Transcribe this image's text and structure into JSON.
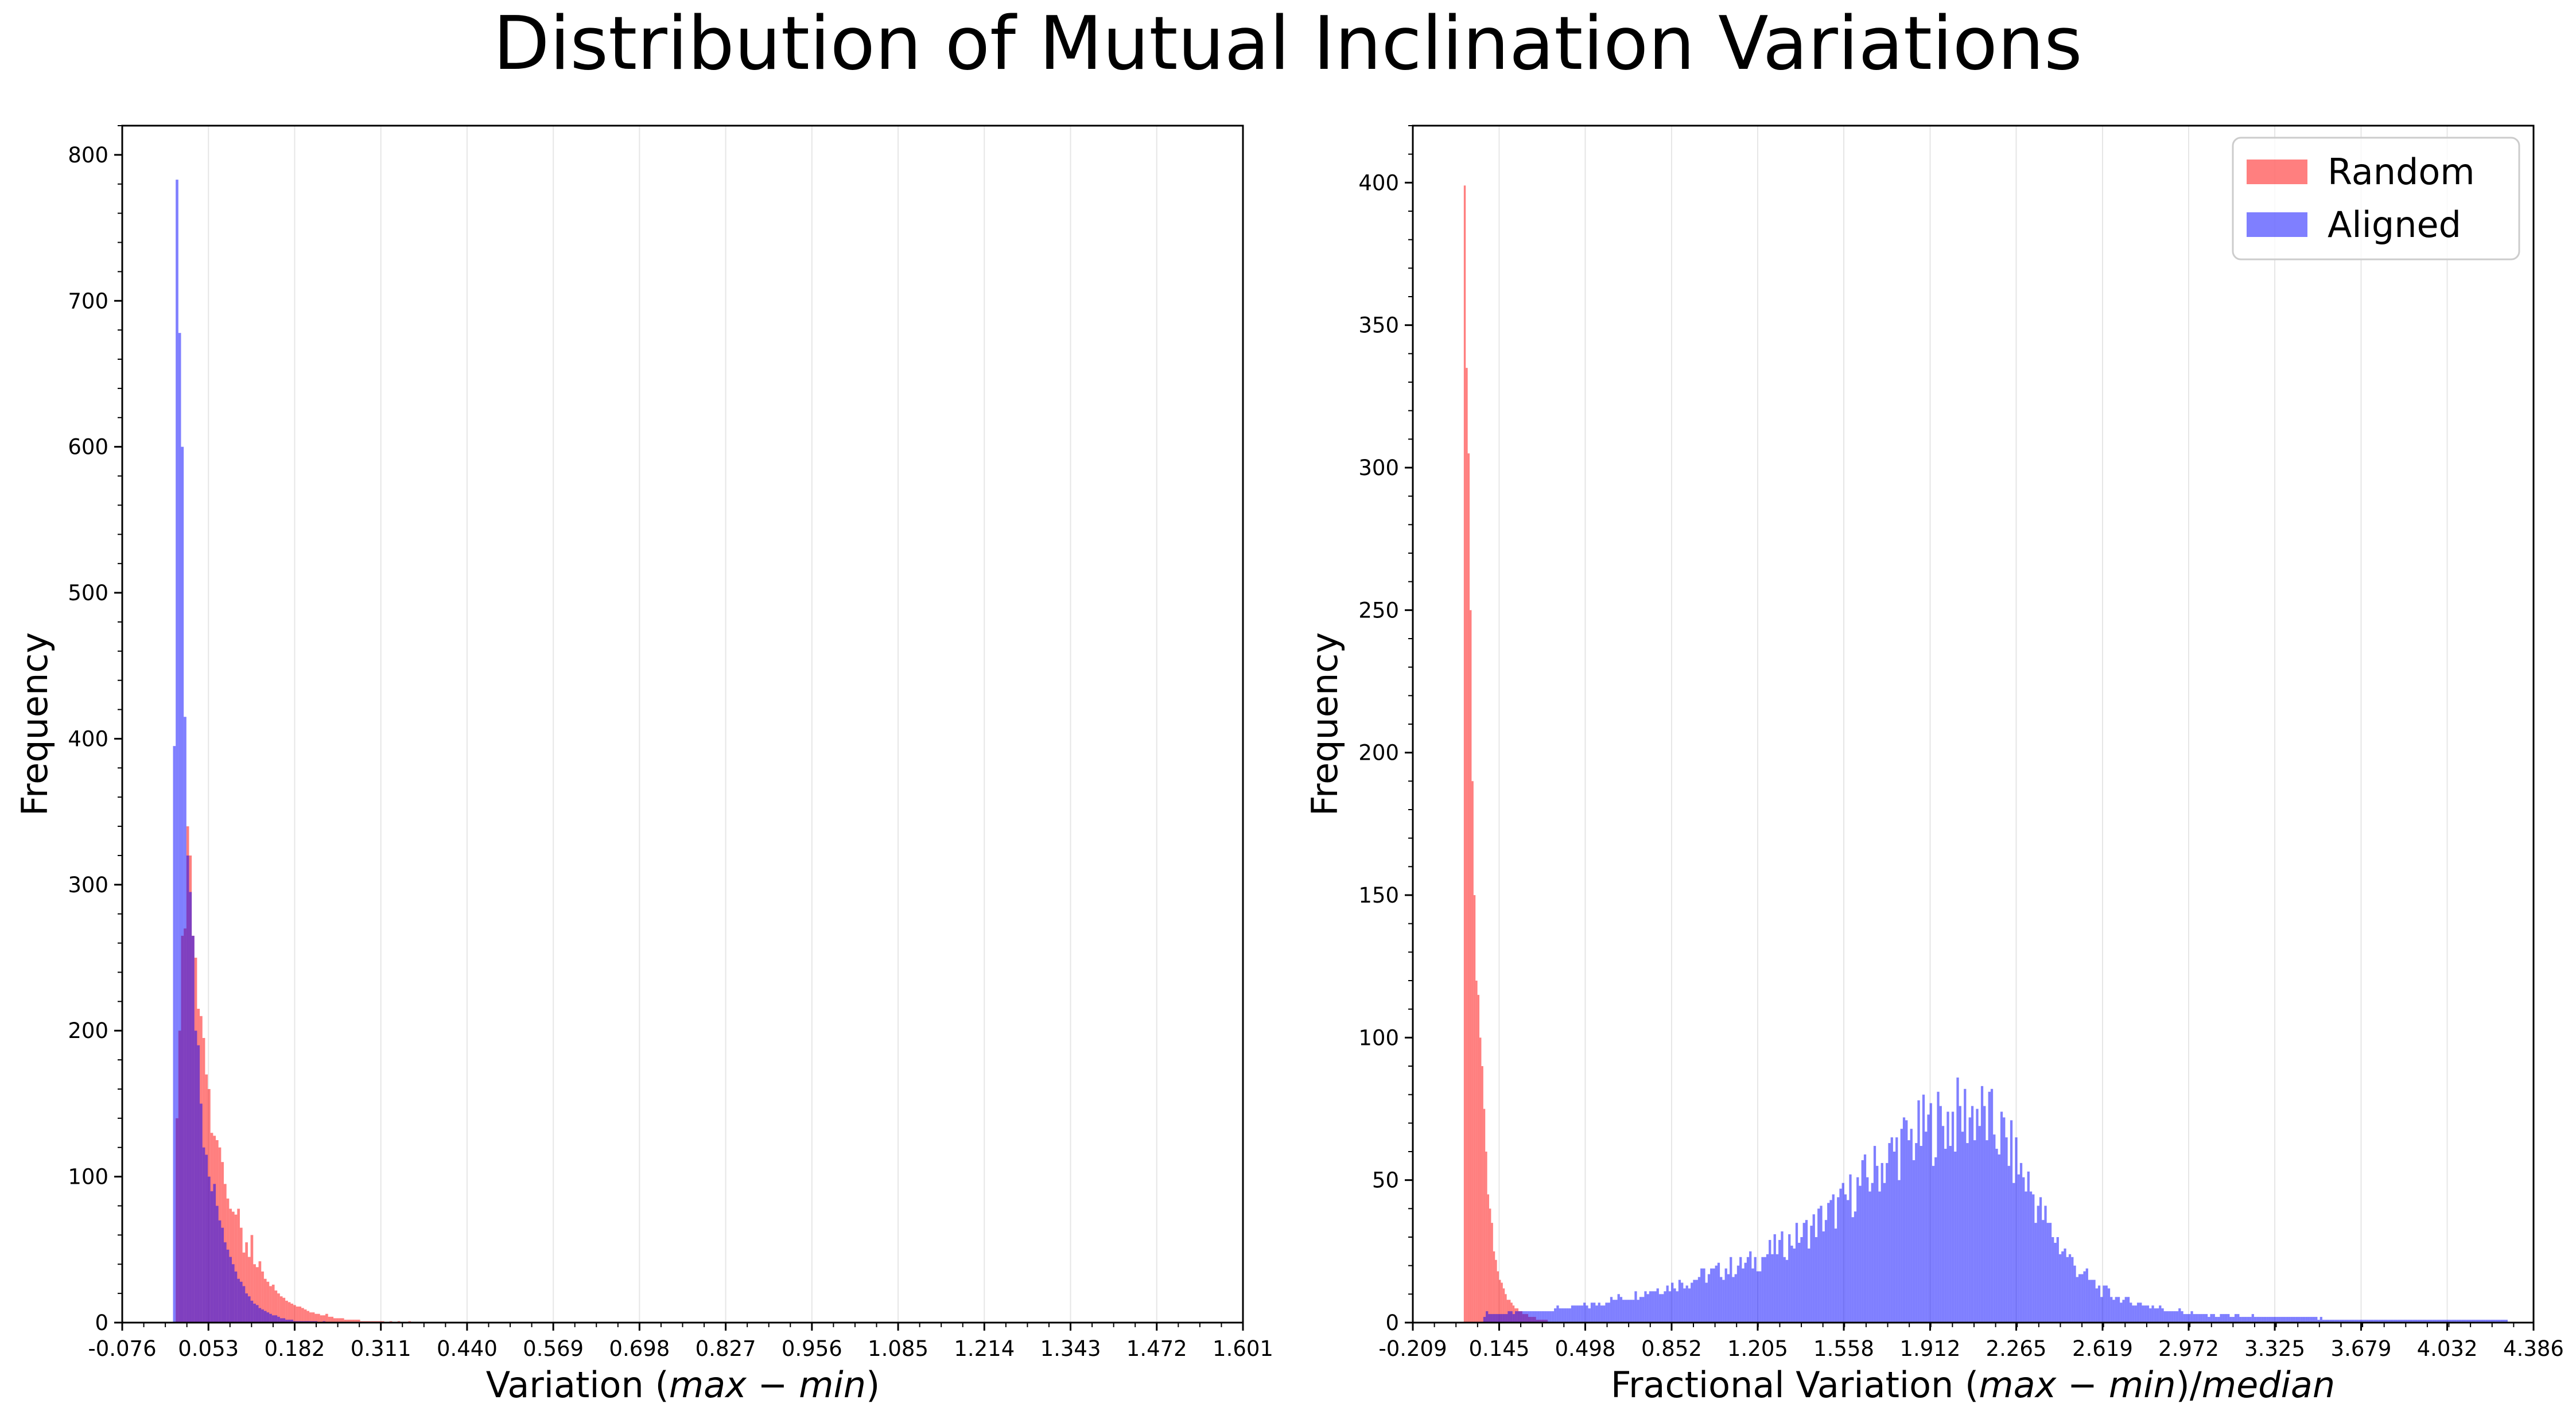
{
  "figure": {
    "title": "Distribution of Mutual Inclination Variations"
  },
  "colors": {
    "random": "#ff0000",
    "aligned": "#0000ff",
    "bar_alpha": 0.5,
    "grid": "#e6e6e6"
  },
  "chart_data": [
    {
      "type": "bar",
      "subtype": "histogram-overlay",
      "xlabel_text": "Variation (",
      "xlabel_math": "max − min",
      "xlabel_tail": ")",
      "ylabel": "Frequency",
      "xlim": [
        -0.076,
        1.601
      ],
      "ylim": [
        0,
        820
      ],
      "grid": "vertical",
      "xticks": [
        "-0.076",
        "0.053",
        "0.182",
        "0.311",
        "0.440",
        "0.569",
        "0.698",
        "0.827",
        "0.956",
        "1.085",
        "1.214",
        "1.343",
        "1.472",
        "1.601"
      ],
      "xtick_values": [
        -0.076,
        0.053,
        0.182,
        0.311,
        0.44,
        0.569,
        0.698,
        0.827,
        0.956,
        1.085,
        1.214,
        1.343,
        1.472,
        1.601
      ],
      "yticks": [
        0,
        100,
        200,
        300,
        400,
        500,
        600,
        700,
        800
      ],
      "series": [
        {
          "key": "random",
          "bin_start": 0.004,
          "bin_width": 0.004,
          "values": [
            140,
            200,
            265,
            270,
            340,
            320,
            265,
            250,
            215,
            210,
            195,
            170,
            160,
            130,
            128,
            125,
            120,
            110,
            95,
            85,
            78,
            76,
            74,
            78,
            65,
            48,
            55,
            45,
            60,
            40,
            38,
            42,
            35,
            30,
            28,
            25,
            26,
            22,
            20,
            18,
            17,
            15,
            14,
            13,
            12,
            11,
            11,
            10,
            9,
            8,
            7,
            7,
            6,
            6,
            5,
            5,
            6,
            4,
            4,
            3,
            3,
            3,
            3,
            2,
            2,
            2,
            2,
            2,
            2,
            1,
            1,
            1,
            1,
            1,
            1,
            1,
            1,
            1,
            0,
            0,
            1,
            0,
            0,
            1,
            0,
            0,
            0,
            1
          ]
        },
        {
          "key": "aligned",
          "bin_start": 0.0,
          "bin_width": 0.004,
          "values": [
            395,
            783,
            678,
            600,
            415,
            320,
            295,
            265,
            200,
            190,
            150,
            120,
            115,
            100,
            90,
            95,
            80,
            70,
            65,
            55,
            50,
            45,
            40,
            35,
            30,
            28,
            25,
            20,
            18,
            15,
            13,
            12,
            10,
            9,
            8,
            7,
            6,
            5,
            5,
            4,
            3,
            3,
            2,
            2,
            2,
            1,
            1,
            1,
            1,
            1,
            1,
            1,
            1,
            1,
            0,
            0,
            1
          ]
        }
      ]
    },
    {
      "type": "bar",
      "subtype": "histogram-overlay",
      "xlabel_text": "Fractional Variation (",
      "xlabel_math": "max − min",
      "xlabel_tail": ")/",
      "xlabel_math2": "median",
      "ylabel": "Frequency",
      "xlim": [
        -0.209,
        4.386
      ],
      "ylim": [
        0,
        420
      ],
      "grid": "vertical",
      "legend": {
        "placement": "top-right",
        "entries": [
          "Random",
          "Aligned"
        ]
      },
      "xticks": [
        "-0.209",
        "0.145",
        "0.498",
        "0.852",
        "1.205",
        "1.558",
        "1.912",
        "2.265",
        "2.619",
        "2.972",
        "3.325",
        "3.679",
        "4.032",
        "4.386"
      ],
      "xtick_values": [
        -0.209,
        0.145,
        0.498,
        0.852,
        1.205,
        1.558,
        1.912,
        2.265,
        2.619,
        2.972,
        3.325,
        3.679,
        4.032,
        4.386
      ],
      "yticks": [
        0,
        50,
        100,
        150,
        200,
        250,
        300,
        350,
        400
      ],
      "series": [
        {
          "key": "random",
          "bin_start": 0.0,
          "bin_width": 0.008,
          "values": [
            399,
            335,
            305,
            250,
            190,
            150,
            120,
            115,
            100,
            90,
            75,
            60,
            45,
            40,
            35,
            25,
            22,
            18,
            15,
            14,
            12,
            10,
            8,
            8,
            7,
            6,
            5,
            5,
            4,
            4,
            3,
            3,
            3,
            2,
            2,
            2,
            2,
            1,
            1,
            1,
            1,
            1,
            1
          ]
        },
        {
          "key": "aligned",
          "bin_start": 0.08,
          "bin_width": 0.01,
          "segments": [
            {
              "x": 0.08,
              "y": 3
            },
            {
              "x": 0.3,
              "y": 4
            },
            {
              "x": 0.5,
              "y": 6
            },
            {
              "x": 0.7,
              "y": 10
            },
            {
              "x": 0.85,
              "y": 13
            },
            {
              "x": 1.0,
              "y": 17
            },
            {
              "x": 1.2,
              "y": 22
            },
            {
              "x": 1.4,
              "y": 32
            },
            {
              "x": 1.55,
              "y": 42
            },
            {
              "x": 1.7,
              "y": 55
            },
            {
              "x": 1.8,
              "y": 63
            },
            {
              "x": 1.9,
              "y": 68
            },
            {
              "x": 2.0,
              "y": 72
            },
            {
              "x": 2.1,
              "y": 74
            },
            {
              "x": 2.2,
              "y": 66
            },
            {
              "x": 2.3,
              "y": 50
            },
            {
              "x": 2.4,
              "y": 32
            },
            {
              "x": 2.5,
              "y": 20
            },
            {
              "x": 2.6,
              "y": 12
            },
            {
              "x": 2.7,
              "y": 8
            },
            {
              "x": 2.85,
              "y": 5
            },
            {
              "x": 3.0,
              "y": 3
            },
            {
              "x": 3.3,
              "y": 2
            },
            {
              "x": 3.7,
              "y": 1
            },
            {
              "x": 4.2,
              "y": 1
            },
            {
              "x": 4.35,
              "y": 0
            }
          ]
        }
      ]
    }
  ],
  "legend": {
    "random_label": "Random",
    "aligned_label": "Aligned"
  }
}
